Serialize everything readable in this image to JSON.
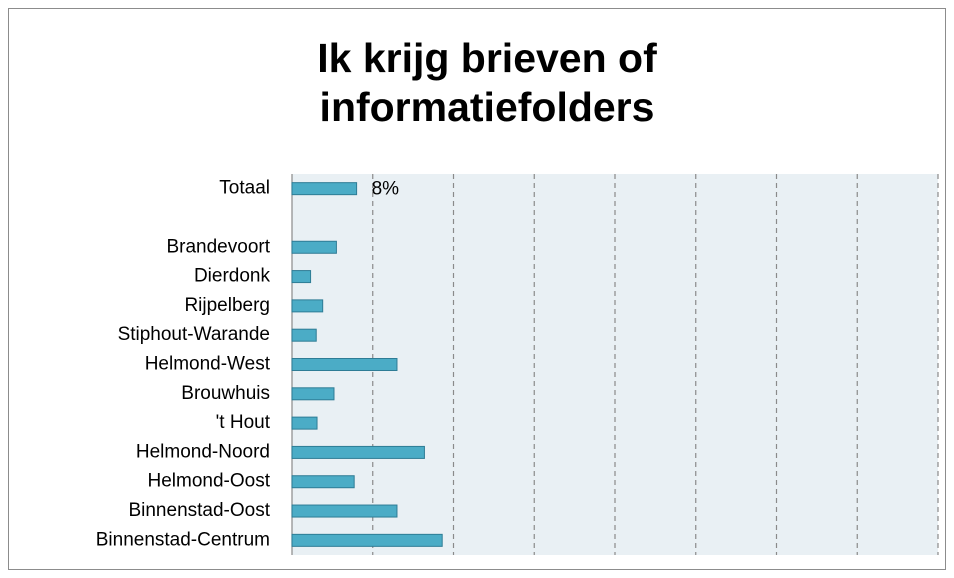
{
  "chart_data": {
    "type": "bar",
    "orientation": "horizontal",
    "title": [
      "Ik krijg brieven of",
      "informatiefolders"
    ],
    "categories": [
      "Totaal",
      null,
      "Brandevoort",
      "Dierdonk",
      "Rijpelberg",
      "Stiphout-Warande",
      "Helmond-West",
      "Brouwhuis",
      "'t Hout",
      "Helmond-Noord",
      "Helmond-Oost",
      "Binnenstad-Oost",
      "Binnenstad-Centrum"
    ],
    "values": [
      8,
      null,
      5.5,
      2.3,
      3.8,
      3.0,
      13,
      5.2,
      3.1,
      16.4,
      7.7,
      13,
      18.6
    ],
    "value_labels": [
      "8%",
      null,
      null,
      null,
      null,
      null,
      null,
      null,
      null,
      null,
      null,
      null,
      null
    ],
    "color": "#4bacc6",
    "xlim": [
      0,
      80
    ],
    "xticks": [
      0,
      10,
      20,
      30,
      40,
      50,
      60,
      70,
      80
    ],
    "grid": true
  }
}
